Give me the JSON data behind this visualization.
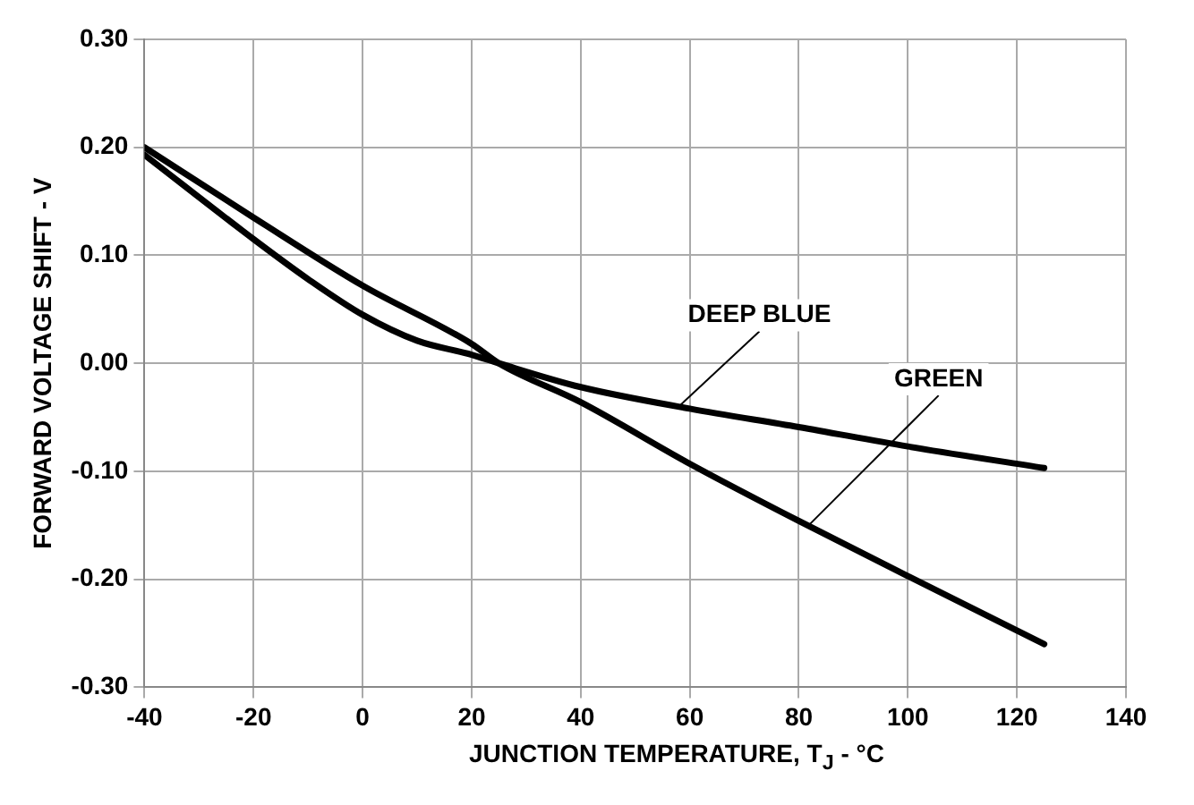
{
  "chart_data": {
    "type": "line",
    "xlabel": "JUNCTION TEMPERATURE, T$_{J}$ - °C",
    "ylabel": "FORWARD VOLTAGE SHIFT - V",
    "xlim": [
      -40,
      140
    ],
    "xticks": [
      -40,
      -20,
      0,
      20,
      40,
      60,
      80,
      100,
      120,
      140
    ],
    "ylim": [
      -0.3,
      0.3
    ],
    "yticks": [
      {
        "value": -0.3,
        "label": "-0.30"
      },
      {
        "value": -0.2,
        "label": "-0.20"
      },
      {
        "value": -0.1,
        "label": "-0.10"
      },
      {
        "value": 0,
        "label": "0.00"
      },
      {
        "value": 0.1,
        "label": "0.10"
      },
      {
        "value": 0.2,
        "label": "0.20"
      },
      {
        "value": 0.3,
        "label": "0.30"
      }
    ],
    "grid": true,
    "marker": "none",
    "line_style": "solid",
    "series": [
      {
        "color": "#000000",
        "x": [
          -40,
          -20,
          0,
          20,
          25,
          40,
          60,
          80,
          100,
          125
        ],
        "values": [
          0.2,
          0.135,
          0.072,
          0.018,
          0,
          -0.036,
          -0.093,
          -0.146,
          -0.197,
          -0.26
        ]
      },
      {
        "color": "#000000",
        "x": [
          -40,
          -20,
          -10,
          0,
          10,
          20,
          25,
          40,
          60,
          80,
          100,
          125
        ],
        "values": [
          0.193,
          0.115,
          0.078,
          0.045,
          0.021,
          0.008,
          0,
          -0.022,
          -0.042,
          -0.059,
          -0.077,
          -0.097
        ]
      }
    ],
    "annotations": [
      {
        "text": "DEEP BLUE",
        "x": 58,
        "y": -0.04
      },
      {
        "text": "GREEN",
        "x": 82,
        "y": -0.149
      }
    ]
  }
}
